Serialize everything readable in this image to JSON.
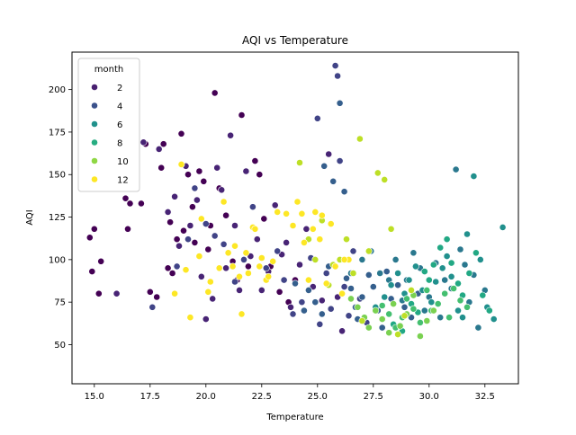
{
  "chart_data": {
    "type": "scatter",
    "title": "AQI vs Temperature",
    "xlabel": "Temperature",
    "ylabel": "AQI",
    "xlim": [
      14.0,
      34.0
    ],
    "ylim": [
      27,
      222
    ],
    "xticks": [
      15.0,
      17.5,
      20.0,
      22.5,
      25.0,
      27.5,
      30.0,
      32.5
    ],
    "xtick_labels": [
      "15.0",
      "17.5",
      "20.0",
      "22.5",
      "25.0",
      "27.5",
      "30.0",
      "32.5"
    ],
    "yticks": [
      50,
      75,
      100,
      125,
      150,
      175,
      200
    ],
    "ytick_labels": [
      "50",
      "75",
      "100",
      "125",
      "150",
      "175",
      "200"
    ],
    "grid": false,
    "legend": {
      "title": "month",
      "placement": "top-left",
      "entries": [
        {
          "label": "2",
          "color": "#481f70"
        },
        {
          "label": "4",
          "color": "#3b528b"
        },
        {
          "label": "6",
          "color": "#21918c"
        },
        {
          "label": "8",
          "color": "#27ad81"
        },
        {
          "label": "10",
          "color": "#8fd744"
        },
        {
          "label": "12",
          "color": "#fde725"
        }
      ]
    },
    "colormap": [
      "#440154",
      "#482475",
      "#414487",
      "#355f8d",
      "#2a788e",
      "#21908d",
      "#22a884",
      "#44bf70",
      "#7ad151",
      "#bddf26",
      "#fde725",
      "#fde725"
    ],
    "series": [
      {
        "month": 1,
        "points": [
          [
            14.8,
            113
          ],
          [
            14.9,
            93
          ],
          [
            15.0,
            118
          ],
          [
            15.2,
            80
          ],
          [
            15.3,
            99
          ],
          [
            16.4,
            136
          ],
          [
            16.5,
            118
          ],
          [
            16.6,
            133
          ],
          [
            17.1,
            133
          ],
          [
            17.3,
            168
          ],
          [
            17.5,
            81
          ],
          [
            17.8,
            78
          ],
          [
            18.0,
            154
          ],
          [
            18.1,
            168
          ],
          [
            18.3,
            95
          ],
          [
            18.4,
            122
          ],
          [
            18.5,
            92
          ],
          [
            18.7,
            112
          ],
          [
            18.9,
            174
          ],
          [
            19.0,
            117
          ],
          [
            19.2,
            150
          ],
          [
            19.4,
            131
          ],
          [
            19.5,
            110
          ],
          [
            19.7,
            152
          ],
          [
            19.9,
            146
          ],
          [
            20.1,
            106
          ],
          [
            20.2,
            120
          ],
          [
            20.4,
            198
          ],
          [
            20.6,
            142
          ],
          [
            20.9,
            126
          ],
          [
            21.2,
            99
          ],
          [
            21.4,
            88
          ],
          [
            21.6,
            185
          ],
          [
            21.9,
            96
          ],
          [
            22.2,
            158
          ],
          [
            22.4,
            150
          ],
          [
            22.6,
            124
          ],
          [
            22.9,
            96
          ],
          [
            23.3,
            81
          ],
          [
            23.7,
            75
          ],
          [
            24.0,
            88
          ]
        ]
      },
      {
        "month": 2,
        "points": [
          [
            16.0,
            80
          ],
          [
            17.2,
            169
          ],
          [
            17.9,
            165
          ],
          [
            18.3,
            128
          ],
          [
            18.6,
            137
          ],
          [
            18.8,
            108
          ],
          [
            19.1,
            155
          ],
          [
            19.3,
            120
          ],
          [
            19.6,
            135
          ],
          [
            19.8,
            90
          ],
          [
            20.0,
            65
          ],
          [
            20.3,
            77
          ],
          [
            20.5,
            154
          ],
          [
            20.7,
            141
          ],
          [
            20.9,
            95
          ],
          [
            21.1,
            173
          ],
          [
            21.3,
            120
          ],
          [
            21.5,
            82
          ],
          [
            21.8,
            152
          ],
          [
            22.0,
            102
          ],
          [
            22.3,
            112
          ],
          [
            22.5,
            82
          ],
          [
            22.8,
            93
          ],
          [
            23.1,
            132
          ],
          [
            23.4,
            103
          ],
          [
            23.6,
            110
          ],
          [
            23.8,
            72
          ],
          [
            24.2,
            97
          ],
          [
            24.5,
            118
          ],
          [
            24.8,
            84
          ],
          [
            25.2,
            76
          ],
          [
            25.5,
            162
          ],
          [
            25.9,
            78
          ],
          [
            26.1,
            58
          ]
        ]
      },
      {
        "month": 3,
        "points": [
          [
            17.6,
            72
          ],
          [
            18.7,
            96
          ],
          [
            19.2,
            112
          ],
          [
            19.5,
            142
          ],
          [
            20.0,
            121
          ],
          [
            20.4,
            114
          ],
          [
            20.8,
            109
          ],
          [
            21.3,
            87
          ],
          [
            21.7,
            100
          ],
          [
            22.1,
            131
          ],
          [
            22.7,
            95
          ],
          [
            23.2,
            105
          ],
          [
            23.5,
            88
          ],
          [
            23.9,
            68
          ],
          [
            24.3,
            75
          ],
          [
            24.7,
            101
          ],
          [
            25.0,
            183
          ],
          [
            25.1,
            62
          ],
          [
            25.4,
            92
          ],
          [
            25.6,
            71
          ],
          [
            25.8,
            214
          ],
          [
            25.9,
            208
          ],
          [
            26.0,
            158
          ],
          [
            26.2,
            84
          ],
          [
            26.4,
            67
          ],
          [
            26.6,
            105
          ],
          [
            26.9,
            77
          ],
          [
            27.2,
            63
          ]
        ]
      },
      {
        "month": 4,
        "points": [
          [
            24.0,
            86
          ],
          [
            24.4,
            70
          ],
          [
            24.6,
            82
          ],
          [
            24.9,
            75
          ],
          [
            25.2,
            68
          ],
          [
            25.3,
            155
          ],
          [
            25.5,
            96
          ],
          [
            25.7,
            146
          ],
          [
            26.0,
            192
          ],
          [
            26.2,
            140
          ],
          [
            26.3,
            89
          ],
          [
            26.5,
            83
          ],
          [
            26.7,
            72
          ],
          [
            26.8,
            65
          ],
          [
            27.0,
            78
          ],
          [
            27.3,
            91
          ],
          [
            27.5,
            84
          ],
          [
            27.7,
            70
          ],
          [
            27.9,
            60
          ],
          [
            28.1,
            93
          ],
          [
            28.3,
            77
          ],
          [
            28.6,
            85
          ],
          [
            28.9,
            72
          ],
          [
            29.2,
            66
          ],
          [
            29.5,
            80
          ]
        ]
      },
      {
        "month": 5,
        "points": [
          [
            26.5,
            92
          ],
          [
            27.0,
            100
          ],
          [
            27.4,
            105
          ],
          [
            27.8,
            92
          ],
          [
            28.2,
            88
          ],
          [
            28.5,
            100
          ],
          [
            28.8,
            76
          ],
          [
            29.0,
            88
          ],
          [
            29.3,
            104
          ],
          [
            29.6,
            95
          ],
          [
            29.8,
            70
          ],
          [
            30.0,
            78
          ],
          [
            30.3,
            98
          ],
          [
            30.5,
            66
          ],
          [
            30.7,
            88
          ],
          [
            31.0,
            83
          ],
          [
            31.2,
            153
          ],
          [
            31.4,
            106
          ],
          [
            31.6,
            97
          ],
          [
            31.8,
            75
          ],
          [
            32.0,
            91
          ],
          [
            32.2,
            60
          ],
          [
            32.5,
            82
          ]
        ]
      },
      {
        "month": 6,
        "points": [
          [
            27.6,
            72
          ],
          [
            28.0,
            78
          ],
          [
            28.3,
            85
          ],
          [
            28.6,
            92
          ],
          [
            28.9,
            80
          ],
          [
            29.1,
            88
          ],
          [
            29.4,
            96
          ],
          [
            29.7,
            82
          ],
          [
            29.9,
            64
          ],
          [
            30.1,
            75
          ],
          [
            30.3,
            87
          ],
          [
            30.6,
            95
          ],
          [
            30.8,
            102
          ],
          [
            31.0,
            90
          ],
          [
            31.3,
            70
          ],
          [
            31.5,
            66
          ],
          [
            31.7,
            115
          ],
          [
            32.0,
            149
          ],
          [
            32.3,
            100
          ],
          [
            32.6,
            72
          ],
          [
            32.9,
            65
          ],
          [
            33.3,
            119
          ]
        ]
      },
      {
        "month": 7,
        "points": [
          [
            28.4,
            62
          ],
          [
            28.8,
            58
          ],
          [
            29.2,
            74
          ],
          [
            29.5,
            69
          ],
          [
            29.8,
            93
          ],
          [
            30.0,
            88
          ],
          [
            30.2,
            97
          ],
          [
            30.5,
            107
          ],
          [
            30.8,
            112
          ],
          [
            31.0,
            98
          ],
          [
            31.3,
            86
          ],
          [
            31.5,
            79
          ],
          [
            31.8,
            92
          ],
          [
            32.1,
            104
          ],
          [
            32.4,
            79
          ],
          [
            32.7,
            70
          ]
        ]
      },
      {
        "month": 8,
        "points": [
          [
            27.9,
            73
          ],
          [
            28.2,
            68
          ],
          [
            28.5,
            60
          ],
          [
            28.8,
            66
          ],
          [
            29.0,
            77
          ],
          [
            29.3,
            71
          ],
          [
            29.6,
            63
          ],
          [
            29.9,
            82
          ],
          [
            30.1,
            70
          ],
          [
            30.4,
            74
          ],
          [
            30.7,
            80
          ],
          [
            30.9,
            66
          ],
          [
            31.1,
            83
          ],
          [
            31.4,
            76
          ],
          [
            31.7,
            72
          ]
        ]
      },
      {
        "month": 9,
        "points": [
          [
            26.5,
            77
          ],
          [
            26.8,
            72
          ],
          [
            27.1,
            66
          ],
          [
            27.3,
            60
          ],
          [
            27.6,
            70
          ],
          [
            27.9,
            65
          ],
          [
            28.2,
            57
          ],
          [
            28.4,
            74
          ],
          [
            28.7,
            61
          ],
          [
            29.0,
            68
          ],
          [
            29.3,
            79
          ],
          [
            29.6,
            55
          ],
          [
            29.9,
            64
          ],
          [
            30.2,
            70
          ]
        ]
      },
      {
        "month": 10,
        "points": [
          [
            24.2,
            157
          ],
          [
            24.6,
            112
          ],
          [
            24.9,
            100
          ],
          [
            25.2,
            123
          ],
          [
            25.5,
            85
          ],
          [
            25.7,
            97
          ],
          [
            26.0,
            100
          ],
          [
            26.3,
            112
          ],
          [
            26.6,
            92
          ],
          [
            26.9,
            171
          ],
          [
            27.0,
            64
          ],
          [
            27.3,
            105
          ],
          [
            27.7,
            151
          ],
          [
            28.0,
            147
          ],
          [
            28.3,
            118
          ],
          [
            28.6,
            56
          ],
          [
            28.9,
            67
          ],
          [
            29.2,
            82
          ]
        ]
      },
      {
        "month": 11,
        "points": [
          [
            18.6,
            80
          ],
          [
            19.1,
            94
          ],
          [
            19.7,
            102
          ],
          [
            20.2,
            87
          ],
          [
            20.8,
            134
          ],
          [
            21.2,
            96
          ],
          [
            21.5,
            90
          ],
          [
            21.8,
            104
          ],
          [
            22.1,
            119
          ],
          [
            22.4,
            96
          ],
          [
            22.7,
            88
          ],
          [
            23.0,
            99
          ],
          [
            23.6,
            127
          ],
          [
            24.1,
            134
          ],
          [
            24.4,
            110
          ],
          [
            24.8,
            118
          ],
          [
            25.1,
            112
          ],
          [
            25.4,
            86
          ],
          [
            25.8,
            96
          ],
          [
            26.1,
            80
          ],
          [
            26.4,
            100
          ]
        ]
      },
      {
        "month": 12,
        "points": [
          [
            18.9,
            156
          ],
          [
            19.3,
            66
          ],
          [
            19.8,
            124
          ],
          [
            20.1,
            81
          ],
          [
            20.6,
            95
          ],
          [
            21.0,
            104
          ],
          [
            21.3,
            108
          ],
          [
            21.6,
            68
          ],
          [
            21.9,
            92
          ],
          [
            22.2,
            118
          ],
          [
            22.5,
            101
          ],
          [
            22.8,
            90
          ],
          [
            23.2,
            128
          ],
          [
            23.9,
            120
          ],
          [
            24.3,
            127
          ],
          [
            24.6,
            88
          ],
          [
            24.9,
            128
          ],
          [
            25.2,
            126
          ],
          [
            25.6,
            121
          ],
          [
            26.2,
            100
          ]
        ]
      }
    ]
  }
}
